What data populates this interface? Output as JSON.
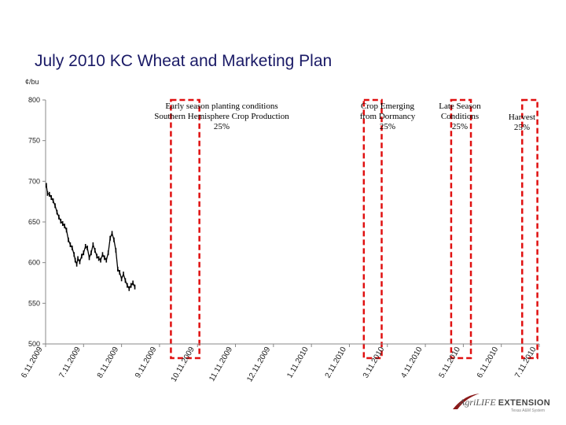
{
  "chart_data": {
    "type": "line",
    "title": "July 2010 KC Wheat and Marketing Plan",
    "ylabel": "¢/bu",
    "xlabel": "",
    "ylim": [
      500,
      800
    ],
    "yticks": [
      500,
      550,
      600,
      650,
      700,
      750,
      800
    ],
    "xtick_labels": [
      "6.11.2009",
      "7.11.2009",
      "8.11.2009",
      "9.11.2009",
      "10.11.2009",
      "11.11.2009",
      "12.11.2009",
      "1.11.2010",
      "2.11.2010",
      "3.11.2010",
      "4.11.2010",
      "5.11.2010",
      "6.11.2010",
      "7.11.2010"
    ],
    "grid": false,
    "series": [
      {
        "x": [
          0.02,
          0.05,
          0.1,
          0.15,
          0.2,
          0.25,
          0.3,
          0.35,
          0.4,
          0.45,
          0.5,
          0.55,
          0.6,
          0.65,
          0.7,
          0.75,
          0.78,
          0.82,
          0.85,
          0.9,
          0.95,
          1.0,
          1.05,
          1.1,
          1.15,
          1.2,
          1.25,
          1.3,
          1.35,
          1.4,
          1.45,
          1.5,
          1.55,
          1.6,
          1.65,
          1.7,
          1.75,
          1.8,
          1.85,
          1.9,
          1.95,
          2.0,
          2.05,
          2.1,
          2.15,
          2.2,
          2.25,
          2.3,
          2.35
        ],
        "values": [
          695,
          685,
          684,
          680,
          676,
          670,
          662,
          656,
          651,
          648,
          645,
          640,
          628,
          622,
          618,
          610,
          603,
          598,
          605,
          601,
          608,
          612,
          620,
          618,
          606,
          612,
          622,
          615,
          608,
          605,
          603,
          610,
          606,
          603,
          612,
          630,
          636,
          628,
          615,
          592,
          588,
          580,
          586,
          578,
          572,
          568,
          572,
          575,
          570
        ]
      }
    ],
    "shaded_periods": [
      {
        "label": "Early season planting conditions\nSouthern Hemisphere Crop Production\n25%",
        "start": 3.3,
        "end": 4.05
      },
      {
        "label": "Crop Emerging\nfrom Dormancy\n25%",
        "start": 8.38,
        "end": 8.85
      },
      {
        "label": "Late Season\nConditions\n25%",
        "start": 10.68,
        "end": 11.2
      },
      {
        "label": "Harvest\n25%",
        "start": 12.55,
        "end": 12.95
      }
    ]
  },
  "annotations": {
    "box1": [
      "Early season planting conditions",
      "Southern Hemisphere Crop Production",
      "25%"
    ],
    "box2": [
      "Crop Emerging",
      "from Dormancy",
      "25%"
    ],
    "box3": [
      "Late Season",
      "Conditions",
      "25%"
    ],
    "box4": [
      "Harvest",
      "25%"
    ]
  },
  "logo": {
    "agri": "Agri",
    "life": "LIFE",
    "extension": "EXTENSION",
    "tagline": "Texas A&M System"
  },
  "colors": {
    "title": "#1a1a66",
    "box_border": "#e01010",
    "series": "#000000"
  }
}
